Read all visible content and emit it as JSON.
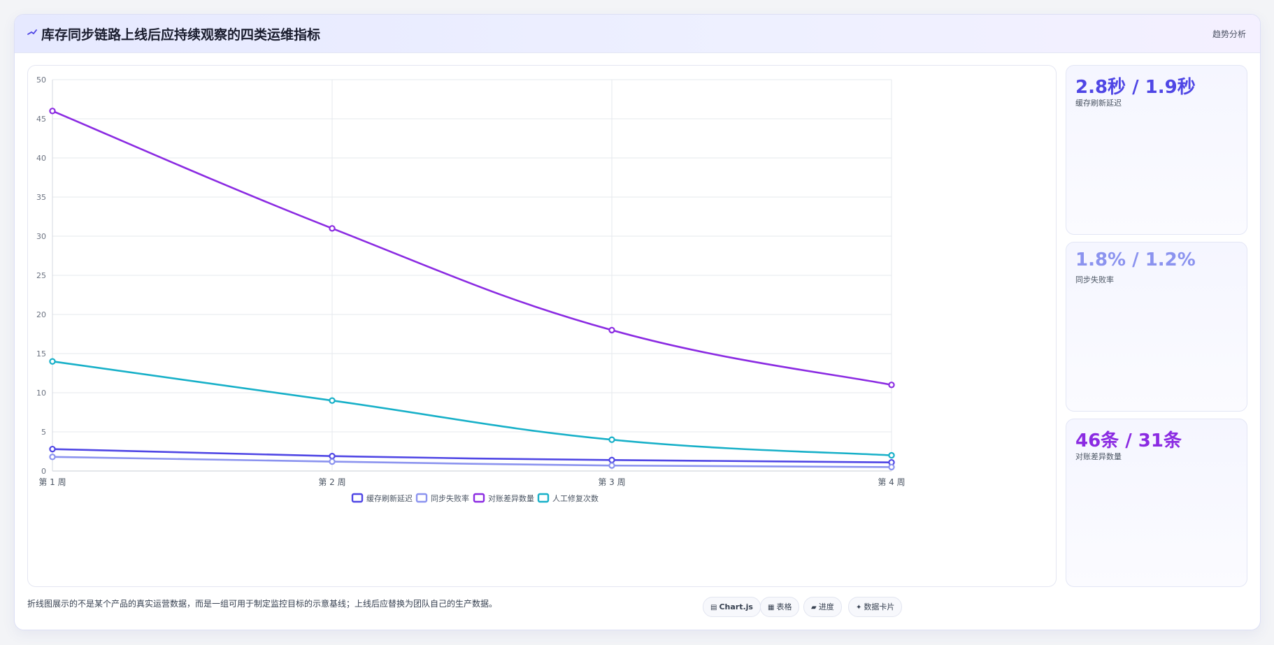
{
  "header": {
    "title": "库存同步链路上线后应持续观察的四类运维指标",
    "badge": "趋势分析"
  },
  "chart_data": {
    "type": "line",
    "categories": [
      "第 1 周",
      "第 2 周",
      "第 3 周",
      "第 4 周"
    ],
    "ylim": [
      0,
      50
    ],
    "yticks": [
      0,
      5,
      10,
      15,
      20,
      25,
      30,
      35,
      40,
      45,
      50
    ],
    "grid": true,
    "legend_position": "bottom",
    "series": [
      {
        "name": "缓存刷新延迟",
        "values": [
          2.8,
          1.9,
          1.4,
          1.1
        ],
        "color": "#4f46e5"
      },
      {
        "name": "同步失败率",
        "values": [
          1.8,
          1.2,
          0.7,
          0.5
        ],
        "color": "#8b93ef"
      },
      {
        "name": "对账差异数量",
        "values": [
          46,
          31,
          18,
          11
        ],
        "color": "#8b2be2"
      },
      {
        "name": "人工修复次数",
        "values": [
          14,
          9,
          4,
          2
        ],
        "color": "#17b0c8"
      }
    ]
  },
  "kpis": [
    {
      "value": "2.8秒 / 1.9秒",
      "label": "缓存刷新延迟",
      "color": "#4f46e5"
    },
    {
      "value": "1.8% / 1.2%",
      "label": "同步失败率",
      "color": "#8b93ef"
    },
    {
      "value": "46条 / 31条",
      "label": "对账差异数量",
      "color": "#8b2be2"
    }
  ],
  "footer": {
    "note": "折线图展示的不是某个产品的真实运营数据，而是一组可用于制定监控目标的示意基线；上线后应替换为团队自己的生产数据。",
    "pills": [
      {
        "icon": "▤",
        "label": "Chart.js",
        "icon_name": "chart-icon"
      },
      {
        "icon": "▦",
        "label": "表格",
        "icon_name": "table-icon"
      },
      {
        "icon": "▰",
        "label": "进度",
        "icon_name": "progress-icon"
      },
      {
        "icon": "✦",
        "label": "数据卡片",
        "icon_name": "card-icon"
      }
    ]
  }
}
